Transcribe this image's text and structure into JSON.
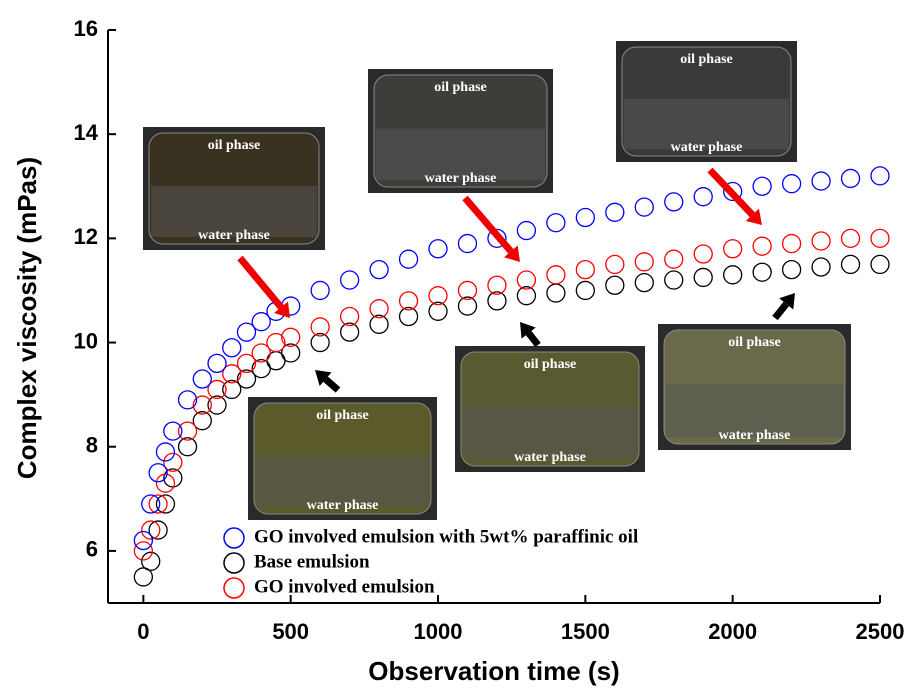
{
  "chart_data": {
    "type": "scatter",
    "y_label": "Complex viscosity (mPas)",
    "x_label": "Observation time (s)",
    "x": [
      0,
      25,
      50,
      75,
      100,
      150,
      200,
      250,
      300,
      350,
      400,
      450,
      500,
      600,
      700,
      800,
      900,
      1000,
      1100,
      1200,
      1300,
      1400,
      1500,
      1600,
      1700,
      1800,
      1900,
      2000,
      2100,
      2200,
      2300,
      2400,
      2500
    ],
    "series": [
      {
        "name": "GO involved emulsion with 5wt% paraffinic oil",
        "color": "#0000ff",
        "values": [
          6.2,
          6.9,
          7.5,
          7.9,
          8.3,
          8.9,
          9.3,
          9.6,
          9.9,
          10.2,
          10.4,
          10.6,
          10.7,
          11.0,
          11.2,
          11.4,
          11.6,
          11.8,
          11.9,
          12.0,
          12.15,
          12.3,
          12.4,
          12.5,
          12.6,
          12.7,
          12.8,
          12.9,
          13.0,
          13.05,
          13.1,
          13.15,
          13.2
        ]
      },
      {
        "name": "Base emulsion",
        "color": "#000000",
        "values": [
          5.5,
          5.8,
          6.4,
          6.9,
          7.4,
          8.0,
          8.5,
          8.8,
          9.1,
          9.3,
          9.5,
          9.65,
          9.8,
          10.0,
          10.2,
          10.35,
          10.5,
          10.6,
          10.7,
          10.8,
          10.9,
          10.95,
          11.0,
          11.1,
          11.15,
          11.2,
          11.25,
          11.3,
          11.35,
          11.4,
          11.45,
          11.5,
          11.5
        ]
      },
      {
        "name": "GO involved emulsion",
        "color": "#ff0000",
        "values": [
          6.0,
          6.4,
          6.9,
          7.3,
          7.7,
          8.3,
          8.8,
          9.1,
          9.4,
          9.6,
          9.8,
          10.0,
          10.1,
          10.3,
          10.5,
          10.65,
          10.8,
          10.9,
          11.0,
          11.1,
          11.2,
          11.3,
          11.4,
          11.5,
          11.55,
          11.6,
          11.7,
          11.8,
          11.85,
          11.9,
          11.95,
          12.0,
          12.0
        ]
      }
    ],
    "xlim": [
      -120,
      2500
    ],
    "ylim": [
      5,
      16
    ],
    "xticks": [
      0,
      500,
      1000,
      1500,
      2000,
      2500
    ],
    "yticks": [
      6,
      8,
      10,
      12,
      14,
      16
    ],
    "insets": [
      {
        "top": "oil phase",
        "bottom": "water phase"
      },
      {
        "top": "oil phase",
        "bottom": "water phase"
      },
      {
        "top": "oil phase",
        "bottom": "water phase"
      },
      {
        "top": "oil phase",
        "bottom": "water phase"
      },
      {
        "top": "oil phase",
        "bottom": "water phase"
      },
      {
        "top": "oil phase",
        "bottom": "water phase"
      }
    ]
  }
}
